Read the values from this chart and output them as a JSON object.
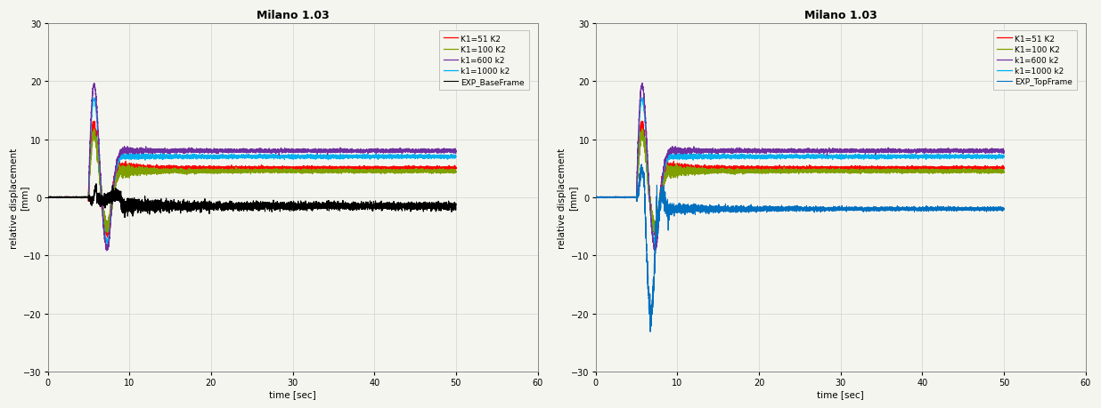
{
  "title": "Milano 1.03",
  "xlabel": "time [sec]",
  "ylabel_top": "[mm]",
  "ylabel_bot": "relative displacement",
  "xlim": [
    0,
    60
  ],
  "ylim": [
    -30,
    30
  ],
  "yticks": [
    -30,
    -20,
    -10,
    0,
    10,
    20,
    30
  ],
  "xticks": [
    0,
    10,
    20,
    30,
    40,
    50,
    60
  ],
  "data_end": 50,
  "spike_start": 5.0,
  "spike_peak1": 6.0,
  "spike_peak2": 7.5,
  "settle_start": 9.0,
  "lines": {
    "K1_51": {
      "color": "#ff0000",
      "label": "K1=51 K2",
      "lw": 0.9,
      "steady": 5.0
    },
    "K1_100": {
      "color": "#80a000",
      "label": "K1=100 K2",
      "lw": 0.9,
      "steady": 4.5
    },
    "k1_600": {
      "color": "#7030a0",
      "label": "k1=600 k2",
      "lw": 0.9,
      "steady": 8.0
    },
    "k1_1000": {
      "color": "#00b0f0",
      "label": "k1=1000 k2",
      "lw": 0.9,
      "steady": 7.0
    },
    "EXP_Base": {
      "color": "#000000",
      "label": "EXP_BaseFrame",
      "lw": 0.8,
      "steady": -1.5
    },
    "EXP_Top": {
      "color": "#0070c0",
      "label": "EXP_TopFrame",
      "lw": 0.8,
      "steady": -2.0
    }
  },
  "bg_color": "#f5f5f0",
  "grid_color": "#d0d0d0",
  "legend_fontsize": 6.5,
  "axis_fontsize": 7.5,
  "title_fontsize": 9,
  "tick_fontsize": 7
}
